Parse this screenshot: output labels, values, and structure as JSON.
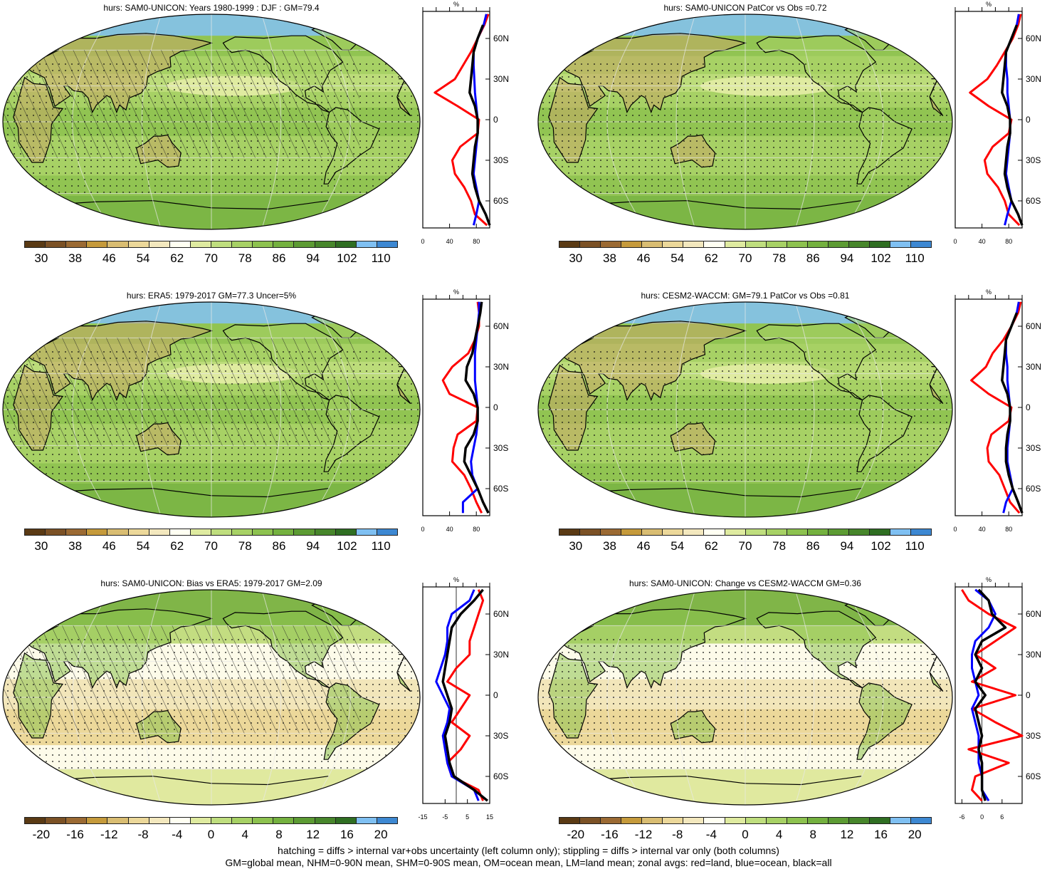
{
  "footer": {
    "line1": "hatching = diffs > internal var+obs uncertainty (left column only); stippling = diffs > internal var only (both columns)",
    "line2": "GM=global mean, NHM=0-90N mean, SHM=0-90S mean, OM=ocean mean, LM=land mean; zonal avgs: red=land, blue=ocean, black=all"
  },
  "colors": {
    "land_line": "#ff0000",
    "ocean_line": "#0000ff",
    "all_line": "#000000",
    "palette": [
      "#5a3a14",
      "#7b5125",
      "#9b6a33",
      "#c59a3b",
      "#d9bd72",
      "#ecd89a",
      "#f3e8be",
      "#fffff2",
      "#dfeba0",
      "#bfde7e",
      "#a7d165",
      "#8dc24f",
      "#74b13f",
      "#5c9b33",
      "#47862b",
      "#2f6e22",
      "#7fc0f2",
      "#3d88d2"
    ]
  },
  "chart_data": [
    {
      "type": "heatmap",
      "title": "hurs: SAM0-UNICON: Years 1980-1999 : DJF : GM=79.4",
      "colorbar_ticks": [
        "30",
        "38",
        "46",
        "54",
        "62",
        "70",
        "78",
        "86",
        "94",
        "102",
        "110"
      ],
      "colorbar_range": [
        26,
        114
      ],
      "profile": {
        "unit_label": "%",
        "y_ticks": [
          "60N",
          "30N",
          "0",
          "30S",
          "60S"
        ],
        "x_ticks": [
          "0",
          "40",
          "80"
        ],
        "xlim": [
          0,
          100
        ],
        "lat": [
          78,
          70,
          60,
          50,
          40,
          30,
          20,
          10,
          0,
          -10,
          -20,
          -30,
          -40,
          -50,
          -60,
          -70,
          -78
        ],
        "land": [
          98,
          92,
          82,
          72,
          60,
          48,
          18,
          52,
          84,
          82,
          56,
          44,
          48,
          62,
          72,
          78,
          96
        ],
        "ocean": [
          95,
          91,
          82,
          76,
          76,
          77,
          78,
          80,
          82,
          82,
          80,
          78,
          76,
          80,
          84,
          80,
          76
        ],
        "all": [
          null,
          90,
          82,
          76,
          74,
          72,
          70,
          78,
          82,
          82,
          78,
          76,
          74,
          78,
          84,
          94,
          100
        ]
      }
    },
    {
      "type": "heatmap",
      "title": "hurs: SAM0-UNICON PatCor vs Obs =0.72",
      "colorbar_ticks": [
        "30",
        "38",
        "46",
        "54",
        "62",
        "70",
        "78",
        "86",
        "94",
        "102",
        "110"
      ],
      "colorbar_range": [
        26,
        114
      ],
      "profile": {
        "unit_label": "%",
        "y_ticks": [
          "60N",
          "30N",
          "0",
          "30S",
          "60S"
        ],
        "x_ticks": [
          "0",
          "40",
          "80"
        ],
        "xlim": [
          0,
          100
        ],
        "lat": [
          78,
          70,
          60,
          50,
          40,
          30,
          20,
          10,
          0,
          -10,
          -20,
          -30,
          -40,
          -50,
          -60,
          -70,
          -78
        ],
        "land": [
          98,
          94,
          86,
          74,
          62,
          48,
          22,
          50,
          84,
          80,
          56,
          44,
          48,
          64,
          74,
          80,
          96
        ],
        "ocean": [
          95,
          92,
          84,
          76,
          76,
          78,
          78,
          80,
          82,
          82,
          80,
          78,
          76,
          80,
          84,
          78,
          74
        ],
        "all": [
          null,
          92,
          84,
          76,
          74,
          72,
          70,
          78,
          82,
          82,
          78,
          76,
          74,
          78,
          84,
          94,
          100
        ]
      }
    },
    {
      "type": "heatmap",
      "title": "hurs: ERA5: 1979-2017 GM=77.3 Uncer=5%",
      "colorbar_ticks": [
        "30",
        "38",
        "46",
        "54",
        "62",
        "70",
        "78",
        "86",
        "94",
        "102",
        "110"
      ],
      "colorbar_range": [
        26,
        114
      ],
      "profile": {
        "unit_label": "%",
        "y_ticks": [
          "60N",
          "30N",
          "0",
          "30S",
          "60S"
        ],
        "x_ticks": [
          "0",
          "40",
          "80"
        ],
        "xlim": [
          0,
          100
        ],
        "lat": [
          78,
          70,
          60,
          50,
          40,
          30,
          20,
          10,
          0,
          -10,
          -20,
          -30,
          -40,
          -50,
          -60,
          -70,
          -78
        ],
        "land": [
          82,
          84,
          84,
          78,
          68,
          44,
          30,
          40,
          82,
          80,
          52,
          46,
          44,
          62,
          72,
          80,
          88
        ],
        "ocean": [
          84,
          84,
          82,
          80,
          78,
          78,
          78,
          80,
          82,
          82,
          80,
          76,
          72,
          74,
          82,
          60,
          60
        ],
        "all": [
          88,
          86,
          82,
          78,
          74,
          66,
          64,
          76,
          82,
          82,
          76,
          64,
          62,
          72,
          82,
          90,
          98
        ]
      }
    },
    {
      "type": "heatmap",
      "title": "hurs: CESM2-WACCM: GM=79.1 PatCor vs Obs =0.81",
      "colorbar_ticks": [
        "30",
        "38",
        "46",
        "54",
        "62",
        "70",
        "78",
        "86",
        "94",
        "102",
        "110"
      ],
      "colorbar_range": [
        26,
        114
      ],
      "profile": {
        "unit_label": "%",
        "y_ticks": [
          "60N",
          "30N",
          "0",
          "30S",
          "60S"
        ],
        "x_ticks": [
          "0",
          "40",
          "80"
        ],
        "xlim": [
          0,
          100
        ],
        "lat": [
          78,
          70,
          60,
          50,
          40,
          30,
          20,
          10,
          0,
          -10,
          -20,
          -30,
          -40,
          -50,
          -60,
          -70,
          -78
        ],
        "land": [
          98,
          94,
          84,
          72,
          56,
          46,
          24,
          50,
          84,
          80,
          54,
          48,
          50,
          66,
          74,
          82,
          96
        ],
        "ocean": [
          95,
          92,
          84,
          76,
          76,
          78,
          78,
          80,
          82,
          82,
          80,
          78,
          78,
          82,
          86,
          76,
          72
        ],
        "all": [
          null,
          92,
          84,
          76,
          74,
          72,
          70,
          78,
          82,
          82,
          78,
          76,
          76,
          80,
          86,
          94,
          100
        ]
      }
    },
    {
      "type": "heatmap",
      "title": "hurs: SAM0-UNICON: Bias vs ERA5: 1979-2017 GM=2.09",
      "colorbar_ticks": [
        "-20",
        "-16",
        "-12",
        "-8",
        "-4",
        "0",
        "4",
        "8",
        "12",
        "16",
        "20"
      ],
      "colorbar_range": [
        -22,
        22
      ],
      "profile": {
        "unit_label": "%",
        "y_ticks": [
          "60N",
          "30N",
          "0",
          "30S",
          "60S"
        ],
        "x_ticks": [
          "-15",
          "-5",
          "5",
          "15"
        ],
        "xlim": [
          -15,
          15
        ],
        "lat": [
          78,
          70,
          60,
          50,
          40,
          30,
          20,
          10,
          0,
          -10,
          -20,
          -30,
          -40,
          -50,
          -60,
          -70,
          -78
        ],
        "land": [
          10,
          12,
          10,
          8,
          6,
          6,
          0,
          -4,
          6,
          2,
          -2,
          6,
          2,
          -4,
          -2,
          10,
          12
        ],
        "ocean": [
          8,
          6,
          -2,
          -4,
          -4,
          -5,
          -7,
          -9,
          -6,
          -3,
          -4,
          -6,
          -5,
          -4,
          -2,
          8,
          10
        ],
        "all": [
          12,
          8,
          2,
          -2,
          -3,
          -4,
          -5,
          -6,
          -4,
          -2,
          -3,
          -5,
          -4,
          -3,
          -1,
          8,
          14
        ]
      }
    },
    {
      "type": "heatmap",
      "title": "hurs: SAM0-UNICON: Change vs CESM2-WACCM GM=0.36",
      "colorbar_ticks": [
        "-20",
        "-16",
        "-12",
        "-8",
        "-4",
        "0",
        "4",
        "8",
        "12",
        "16",
        "20"
      ],
      "colorbar_range": [
        -22,
        22
      ],
      "profile": {
        "unit_label": "%",
        "y_ticks": [
          "60N",
          "30N",
          "0",
          "30S",
          "60S"
        ],
        "x_ticks": [
          "-6",
          "0",
          "6"
        ],
        "xlim": [
          -8,
          12
        ],
        "lat": [
          78,
          70,
          60,
          50,
          40,
          30,
          20,
          10,
          0,
          -10,
          -20,
          -30,
          -40,
          -50,
          -60,
          -70,
          -78
        ],
        "land": [
          -6,
          -4,
          2,
          10,
          4,
          -2,
          4,
          -3,
          10,
          -3,
          4,
          12,
          -4,
          8,
          -2,
          -3,
          0
        ],
        "ocean": [
          -2,
          2,
          4,
          2,
          -2,
          -3,
          -3,
          -2,
          -1,
          -3,
          -2,
          -1,
          -1,
          -1,
          0,
          0,
          2
        ],
        "all": [
          -1,
          2,
          3,
          7,
          0,
          -2,
          0,
          -2,
          1,
          -2,
          -1,
          0,
          -1,
          0,
          0,
          0,
          1
        ]
      }
    }
  ]
}
